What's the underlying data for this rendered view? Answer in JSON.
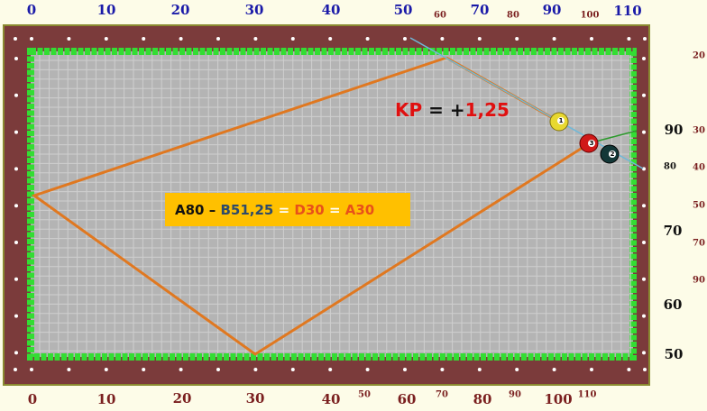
{
  "top_scale": {
    "major": [
      "0",
      "10",
      "20",
      "30",
      "40",
      "50",
      "70",
      "90",
      "110"
    ],
    "minor": [
      "60",
      "80",
      "100"
    ]
  },
  "bottom_scale": {
    "major": [
      "0",
      "10",
      "20",
      "30",
      "40",
      "60",
      "80",
      "100"
    ],
    "minor": [
      "50",
      "70",
      "90",
      "110"
    ]
  },
  "right_scale": {
    "major": [
      "90",
      "70",
      "60",
      "50"
    ],
    "inner": [
      "80"
    ],
    "outer": [
      "20",
      "30",
      "40",
      "50",
      "70",
      "90"
    ]
  },
  "kp": {
    "label": "KP",
    "sign": "= +",
    "value": "1,25"
  },
  "formula": {
    "parts": [
      "A80",
      "–",
      "B51,25",
      "=",
      "D30",
      "=",
      "A30"
    ]
  },
  "balls": [
    "1",
    "3",
    "2"
  ]
}
